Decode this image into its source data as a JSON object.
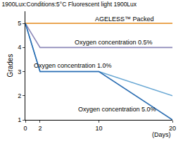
{
  "chart_data": {
    "type": "line",
    "title": "1900Lux:Conditions:5°C Fluorescent light 1900Lux",
    "y_label": "Grades",
    "x_label": "(Days)",
    "xlim": [
      0,
      20
    ],
    "xticks": [
      0,
      2,
      10,
      20
    ],
    "ylim": [
      1,
      5.5
    ],
    "yticks": [
      1,
      2,
      3,
      4,
      5
    ],
    "grid": false,
    "series": [
      {
        "name": "AGELESS™ Packed",
        "color": "#e89a3c",
        "x": [
          0,
          20
        ],
        "values": [
          5,
          5
        ]
      },
      {
        "name": "Oxygen concentration 0.5%",
        "color": "#8c88b8",
        "x": [
          0,
          2,
          20
        ],
        "values": [
          5,
          4,
          4
        ]
      },
      {
        "name": "Oxygen concentration 1.0%",
        "color": "#6aa8d4",
        "x": [
          0,
          2,
          10,
          20
        ],
        "values": [
          5,
          3,
          3,
          2
        ]
      },
      {
        "name": "Oxygen concentration 5.0%",
        "color": "#2a6db2",
        "x": [
          0,
          2,
          10,
          20
        ],
        "values": [
          5,
          3,
          3,
          1
        ]
      }
    ]
  }
}
